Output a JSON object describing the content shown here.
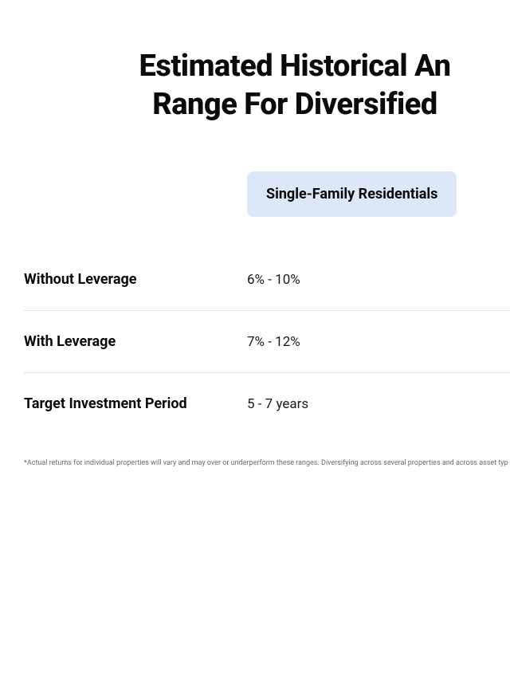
{
  "title": {
    "line1": "Estimated Historical An",
    "line2": "Range For Diversified"
  },
  "table": {
    "column_header": "Single-Family Residentials",
    "column_header_bg": "#dce7f7",
    "rows": [
      {
        "label": "Without Leverage",
        "value": "6% - 10%"
      },
      {
        "label": "With Leverage",
        "value": "7% - 12%"
      },
      {
        "label": "Target Investment Period",
        "value": "5 - 7 years"
      }
    ],
    "border_color": "#e5e5e5"
  },
  "footnote": "*Actual returns for individual properties will vary and may over or underperform these ranges. Diversifying across several properties and across asset typ",
  "styling": {
    "background_color": "#ffffff",
    "title_color": "#0a0a0a",
    "title_fontsize": 38,
    "title_fontweight": 800,
    "label_fontsize": 18,
    "label_fontweight": 700,
    "value_fontsize": 17,
    "value_fontweight": 400,
    "footnote_fontsize": 9,
    "footnote_color": "#6b6b6b"
  }
}
